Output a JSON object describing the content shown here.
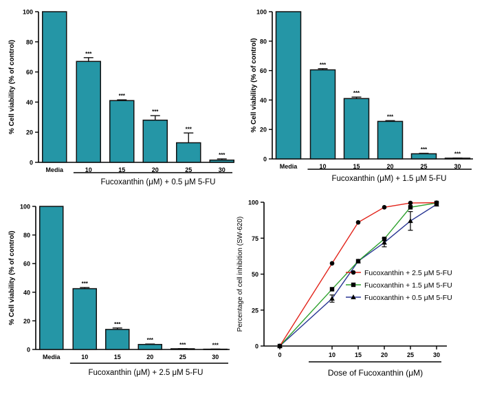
{
  "chart_data": [
    {
      "type": "bar",
      "panel": "top-left",
      "categories": [
        "Media",
        "10",
        "15",
        "20",
        "25",
        "30"
      ],
      "values": [
        100,
        67,
        41,
        28,
        13,
        1.5
      ],
      "errors": [
        0,
        2.5,
        0.5,
        3,
        6.5,
        0.8
      ],
      "annotations": [
        "",
        "***",
        "***",
        "***",
        "***",
        "***"
      ],
      "ylabel": "% Cell viability (% of control)",
      "xlabel": "Fucoxanthin (μM) + 0.5 μM 5-FU",
      "ylim": [
        0,
        100
      ],
      "yticks": [
        "0",
        "20",
        "40",
        "60",
        "80",
        "100"
      ],
      "color": "#2596a6"
    },
    {
      "type": "bar",
      "panel": "top-right",
      "categories": [
        "Media",
        "10",
        "15",
        "20",
        "25",
        "30"
      ],
      "values": [
        100,
        60.5,
        41,
        25.5,
        3.5,
        0.5
      ],
      "errors": [
        0,
        0.8,
        1,
        0.5,
        0.3,
        0.1
      ],
      "annotations": [
        "",
        "***",
        "***",
        "***",
        "***",
        "***"
      ],
      "ylabel": "% Cell viability (% of control)",
      "xlabel": "Fucoxanthin (μM) + 1.5 μM 5-FU",
      "ylim": [
        0,
        100
      ],
      "yticks": [
        "0",
        "20",
        "40",
        "60",
        "80",
        "100"
      ],
      "color": "#2596a6"
    },
    {
      "type": "bar",
      "panel": "bottom-left",
      "categories": [
        "Media",
        "10",
        "15",
        "20",
        "25",
        "30"
      ],
      "values": [
        100,
        42.5,
        14,
        3.5,
        0.5,
        0.2
      ],
      "errors": [
        0,
        0.8,
        1,
        0.3,
        0.1,
        0.1
      ],
      "annotations": [
        "",
        "***",
        "***",
        "***",
        "***",
        "***"
      ],
      "ylabel": "% Cell viability (% of control)",
      "xlabel": "Fucoxanthin (μM) + 2.5 μM 5-FU",
      "ylim": [
        0,
        100
      ],
      "yticks": [
        "0",
        "20",
        "40",
        "60",
        "80",
        "100"
      ],
      "color": "#2596a6"
    },
    {
      "type": "line",
      "panel": "bottom-right",
      "x": [
        0,
        10,
        15,
        20,
        25,
        30
      ],
      "xticks": [
        "0",
        "10",
        "15",
        "20",
        "25",
        "30"
      ],
      "series": [
        {
          "name": "Fucoxanthin + 2.5 μM 5-FU",
          "values": [
            0,
            57.5,
            86,
            96.5,
            99.5,
            99.7
          ],
          "errors": [
            0,
            0.5,
            0.5,
            0.5,
            0.3,
            0.2
          ],
          "color": "#e2231a",
          "marker": "circle"
        },
        {
          "name": "Fucoxanthin + 1.5 μM 5-FU",
          "values": [
            0,
            39.5,
            59,
            74.5,
            96.5,
            99.5
          ],
          "errors": [
            0,
            0.8,
            0.8,
            0.5,
            0.5,
            0.3
          ],
          "color": "#2ca02c",
          "marker": "square"
        },
        {
          "name": "Fucoxanthin + 0.5 μM 5-FU",
          "values": [
            0,
            33,
            59,
            72,
            87,
            98.5
          ],
          "errors": [
            0,
            2.5,
            0.5,
            3,
            6.5,
            0.8
          ],
          "color": "#283593",
          "marker": "triangle"
        }
      ],
      "ylabel": "Percentage of cell inhibition (SW-620)",
      "xlabel": "Dose of Fucoxanthin (μM)",
      "ylim": [
        0,
        100
      ],
      "yticks": [
        "0",
        "25",
        "50",
        "75",
        "100"
      ],
      "legend_position": "right"
    }
  ]
}
